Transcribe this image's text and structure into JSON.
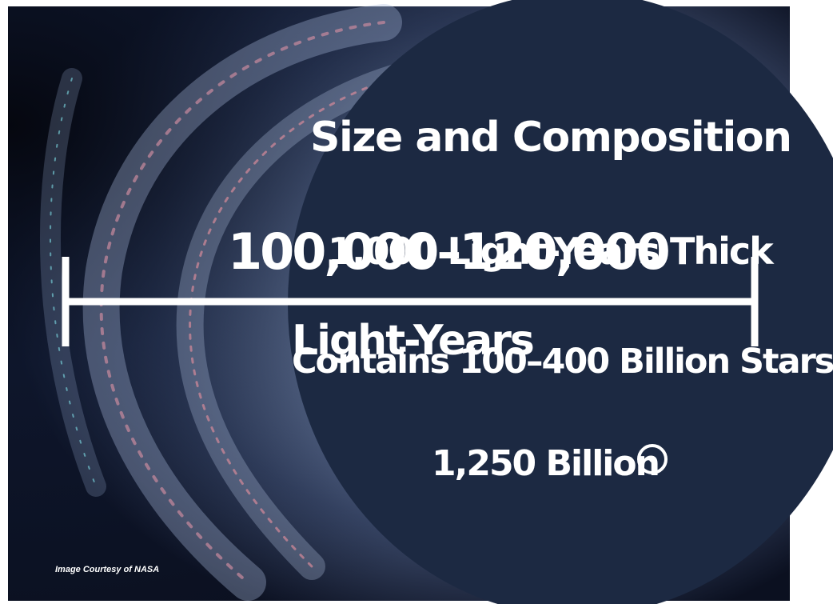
{
  "slide": {
    "title": "Size and Composition",
    "width_value": "100,000–120,000",
    "width_unit": "Light-Years",
    "thickness": "1,000 Light-Years Thick",
    "stars": "Contains 100–400 Billion Stars",
    "mass_value": "1,250 Billion",
    "mass_unit_icon": "solar-mass-icon",
    "credit": "Image Courtesy of NASA"
  },
  "colors": {
    "panel": "#1c2942",
    "text": "#ffffff",
    "space": "#0b1020",
    "galaxy_glow": "#8ea3c9"
  }
}
